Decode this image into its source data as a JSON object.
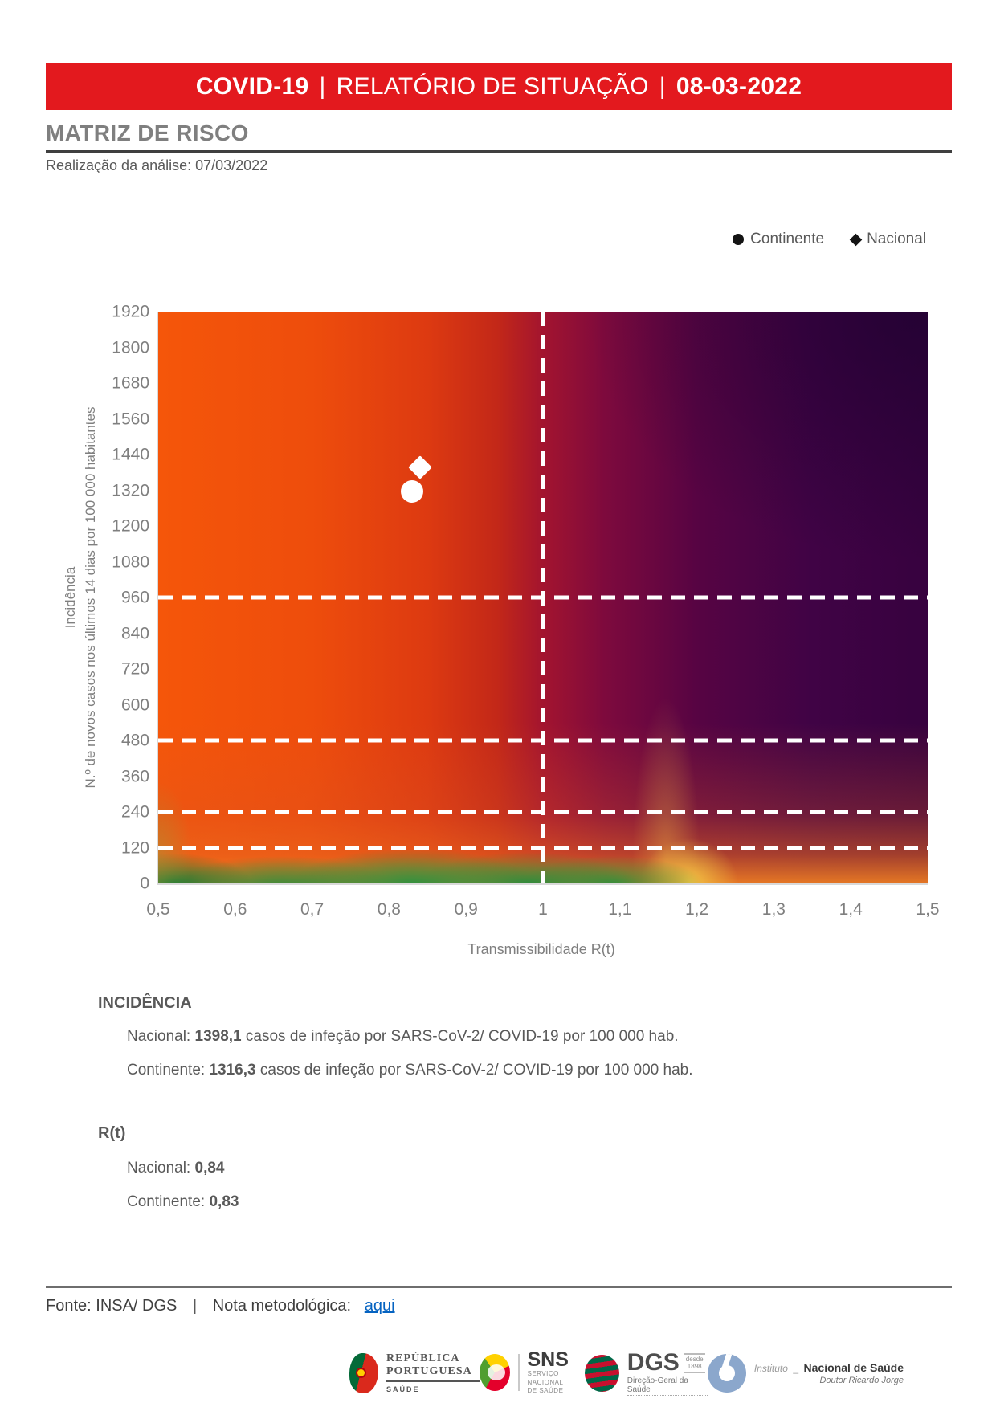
{
  "header": {
    "product": "COVID-19",
    "separator": "|",
    "report": "RELATÓRIO DE SITUAÇÃO",
    "date": "08-03-2022",
    "banner_color": "#e3191e"
  },
  "matrix": {
    "title": "MATRIZ DE RISCO",
    "analysis": "Realização da análise: 07/03/2022"
  },
  "chart_data": {
    "type": "scatter",
    "title": "Matriz de risco COVID-19",
    "xlabel": "Transmissibilidade R(t)",
    "ylabel_line1": "Incidência",
    "ylabel_line2": "N.º de novos casos nos últimos 14 dias por 100 000 habitantes",
    "xlim": [
      0.5,
      1.5
    ],
    "ylim": [
      0,
      1920
    ],
    "grid": false,
    "legend_position": "top-right",
    "x_ticks": [
      {
        "label": "0,5",
        "value": 0.5
      },
      {
        "label": "0,6",
        "value": 0.6
      },
      {
        "label": "0,7",
        "value": 0.7
      },
      {
        "label": "0,8",
        "value": 0.8
      },
      {
        "label": "0,9",
        "value": 0.9
      },
      {
        "label": "1",
        "value": 1.0
      },
      {
        "label": "1,1",
        "value": 1.1
      },
      {
        "label": "1,2",
        "value": 1.2
      },
      {
        "label": "1,3",
        "value": 1.3
      },
      {
        "label": "1,4",
        "value": 1.4
      },
      {
        "label": "1,5",
        "value": 1.5
      }
    ],
    "y_ticks": [
      1920,
      1800,
      1680,
      1560,
      1440,
      1320,
      1200,
      1080,
      960,
      840,
      720,
      600,
      480,
      360,
      240,
      120,
      0
    ],
    "reference_lines": {
      "vertical_x": 1.0,
      "horizontal_y": [
        960,
        480,
        240,
        120
      ],
      "style": "white-dashed"
    },
    "legend": [
      {
        "marker": "circle",
        "label": "Continente"
      },
      {
        "marker": "diamond",
        "label": "Nacional"
      }
    ],
    "series": [
      {
        "name": "Continente",
        "marker": "circle",
        "x": 0.83,
        "y": 1316.3,
        "color": "#ffffff"
      },
      {
        "name": "Nacional",
        "marker": "diamond",
        "x": 0.84,
        "y": 1398.1,
        "color": "#ffffff"
      }
    ],
    "background_colors": {
      "low_risk_green": "#2f8b3c",
      "caution_yellow": "#f2c445",
      "orange": "#f5560a",
      "red": "#c32818",
      "maroon": "#8e0c3a",
      "high_risk_purple": "#37023f"
    }
  },
  "incidencia": {
    "heading": "INCIDÊNCIA",
    "nacional_prefix": "Nacional: ",
    "nacional_value": "1398,1",
    "nacional_suffix": " casos de infeção por SARS-CoV-2/ COVID-19 por 100 000 hab.",
    "continente_prefix": "Continente: ",
    "continente_value": "1316,3",
    "continente_suffix": " casos de infeção por SARS-CoV-2/ COVID-19 por 100 000 hab."
  },
  "rt": {
    "heading": "R(t)",
    "nacional_prefix": "Nacional: ",
    "nacional_value": "0,84",
    "continente_prefix": "Continente: ",
    "continente_value": "0,83"
  },
  "footer": {
    "source": "Fonte: INSA/ DGS",
    "separator": "|",
    "note_label": "Nota metodológica:",
    "link": "aqui"
  },
  "logos": {
    "republica": {
      "line1": "REPÚBLICA",
      "line2": "PORTUGUESA",
      "sub": "SAÚDE"
    },
    "sns": {
      "abbr": "SNS",
      "sub1": "SERVIÇO NACIONAL",
      "sub2": "DE SAÚDE"
    },
    "dgs": {
      "abbr": "DGS",
      "since": "desde",
      "year": "1898",
      "sub": "Direção-Geral da Saúde"
    },
    "insa": {
      "prefix": "Instituto",
      "sep": "_",
      "name": "Nacional de Saúde",
      "sub": "Doutor Ricardo Jorge"
    }
  }
}
